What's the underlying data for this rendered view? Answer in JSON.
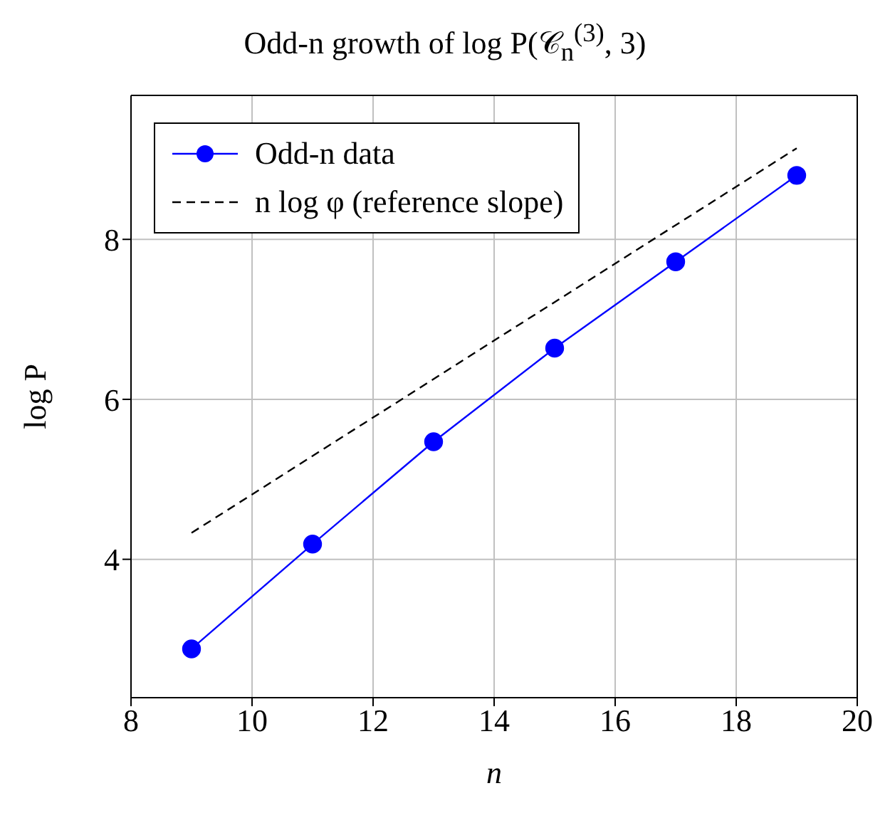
{
  "chart_data": {
    "type": "line",
    "title": "Odd-n growth of log P(𝒞$_{n}$$^{(3)}$, 3)",
    "xlabel": "n",
    "ylabel": "log P",
    "series": [
      {
        "name": "Odd-n data",
        "color": "#0000ff",
        "x": [
          9,
          11,
          13,
          15,
          17,
          19
        ],
        "values": [
          2.88,
          4.19,
          5.47,
          6.64,
          7.72,
          8.8
        ],
        "marker": "circle",
        "line_style": "solid"
      },
      {
        "name": "n log φ (reference slope)",
        "color": "#000000",
        "x": [
          9,
          19
        ],
        "values": [
          4.33,
          9.14
        ],
        "marker": "none",
        "line_style": "dashed"
      }
    ],
    "xlim": [
      8,
      20
    ],
    "xticks": [
      8,
      10,
      12,
      14,
      16,
      18,
      20
    ],
    "ylim": [
      2.27,
      9.8
    ],
    "yticks": [
      4,
      6,
      8
    ],
    "grid": true,
    "legend": "top left"
  }
}
